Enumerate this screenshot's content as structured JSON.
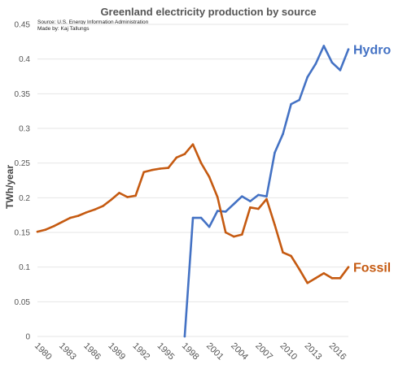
{
  "chart_data": {
    "type": "line",
    "title": "Greenland electricity production by source",
    "source_lines": [
      "Source: U.S. Energy Information Administration",
      "Made by: Kaj Tallungs"
    ],
    "ylabel": "TWh/year",
    "xlabel": "",
    "ylim": [
      0,
      0.45
    ],
    "xlim": [
      1980,
      2018
    ],
    "yticks": [
      0,
      0.05,
      0.1,
      0.15,
      0.2,
      0.25,
      0.3,
      0.35,
      0.4,
      0.45
    ],
    "ytick_labels": [
      "0",
      "0.05",
      "0.1",
      "0.15",
      "0.2",
      "0.25",
      "0.3",
      "0.35",
      "0.4",
      "0.45"
    ],
    "xticks": [
      1980,
      1983,
      1986,
      1989,
      1992,
      1995,
      1998,
      2001,
      2004,
      2007,
      2010,
      2013,
      2016
    ],
    "xtick_labels": [
      "1980",
      "1983",
      "1986",
      "1989",
      "1992",
      "1995",
      "1998",
      "2001",
      "2004",
      "2007",
      "2010",
      "2013",
      "2016"
    ],
    "grid": "horizontal",
    "legend": "inline labels at line ends",
    "series": [
      {
        "name": "Hydro",
        "color": "#4472c4",
        "x": [
          1998,
          1999,
          2000,
          2001,
          2002,
          2003,
          2004,
          2005,
          2006,
          2007,
          2008,
          2009,
          2010,
          2011,
          2012,
          2013,
          2014,
          2015,
          2016,
          2017,
          2018
        ],
        "values": [
          0,
          0.171,
          0.171,
          0.158,
          0.181,
          0.18,
          0.191,
          0.202,
          0.195,
          0.204,
          0.202,
          0.265,
          0.292,
          0.335,
          0.341,
          0.374,
          0.393,
          0.419,
          0.395,
          0.384,
          0.414
        ]
      },
      {
        "name": "Fossil",
        "color": "#c55a11",
        "x": [
          1980,
          1981,
          1982,
          1983,
          1984,
          1985,
          1986,
          1987,
          1988,
          1989,
          1990,
          1991,
          1992,
          1993,
          1994,
          1995,
          1996,
          1997,
          1998,
          1999,
          2000,
          2001,
          2002,
          2003,
          2004,
          2005,
          2006,
          2007,
          2008,
          2009,
          2010,
          2011,
          2012,
          2013,
          2014,
          2015,
          2016,
          2017,
          2018
        ],
        "values": [
          0.151,
          0.154,
          0.159,
          0.165,
          0.171,
          0.174,
          0.179,
          0.183,
          0.188,
          0.197,
          0.207,
          0.201,
          0.203,
          0.237,
          0.24,
          0.242,
          0.243,
          0.258,
          0.263,
          0.277,
          0.25,
          0.23,
          0.201,
          0.15,
          0.144,
          0.147,
          0.186,
          0.184,
          0.198,
          0.161,
          0.121,
          0.116,
          0.097,
          0.077,
          0.084,
          0.091,
          0.084,
          0.084,
          0.1
        ]
      }
    ]
  }
}
